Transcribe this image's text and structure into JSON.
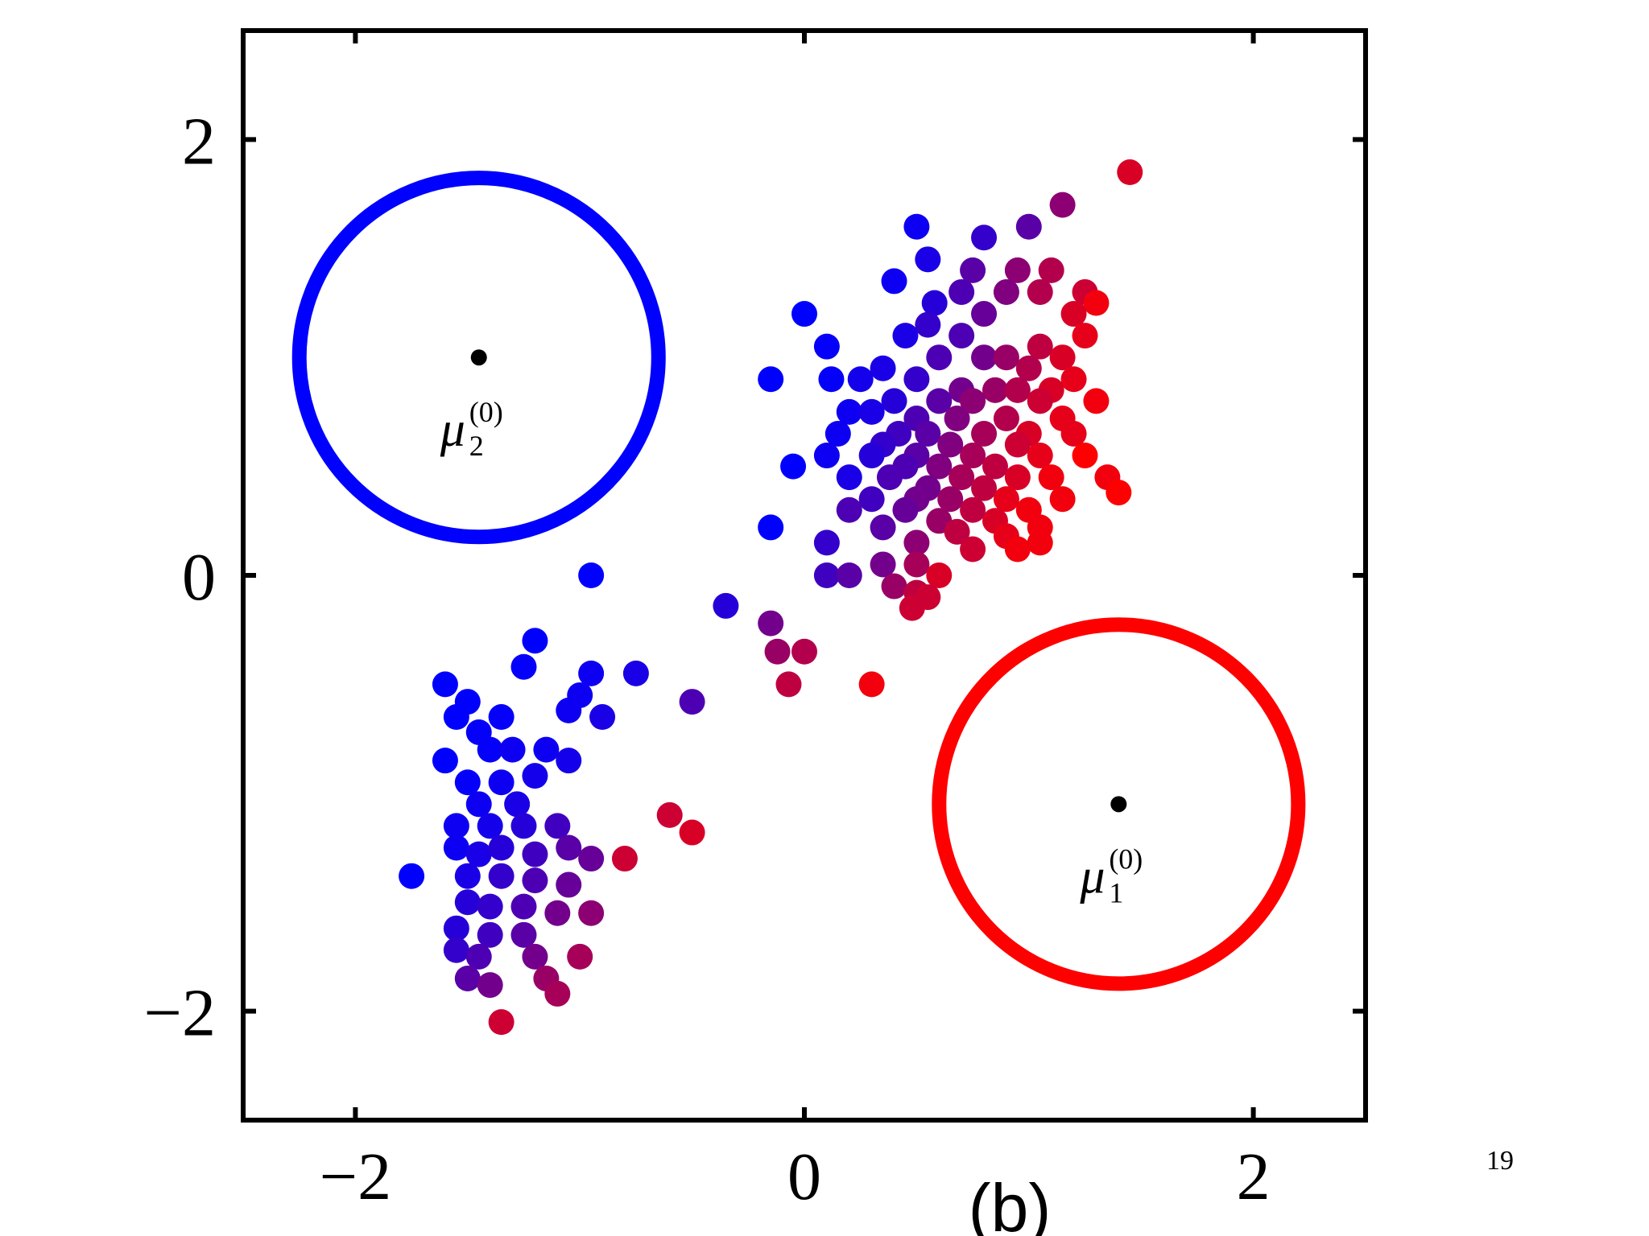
{
  "chart_data": {
    "type": "scatter",
    "title": "",
    "xlabel": "",
    "ylabel": "",
    "subfigure_label": "(b)",
    "xlim": [
      -2.5,
      2.5
    ],
    "ylim": [
      -2.5,
      2.5
    ],
    "x_ticks": [
      -2,
      0,
      2
    ],
    "y_ticks": [
      -2,
      0,
      2
    ],
    "x_tick_labels": [
      "−2",
      "0",
      "2"
    ],
    "y_tick_labels": [
      "2",
      "0",
      "−2"
    ],
    "grid": false,
    "colors": {
      "class_blue": "#0000ff",
      "class_red": "#ff0000",
      "axis": "#000000",
      "mean": "#000000"
    },
    "means": [
      {
        "label": "μ",
        "sub": "2",
        "sup": "(0)",
        "x": -1.45,
        "y": 1.0,
        "circle_radius": 0.8,
        "color": "#0000ff"
      },
      {
        "label": "μ",
        "sub": "1",
        "sup": "(0)",
        "x": 1.4,
        "y": -1.05,
        "circle_radius": 0.8,
        "color": "#ff0000"
      }
    ],
    "points": [
      {
        "x": 1.45,
        "y": 1.85,
        "r": 0.85
      },
      {
        "x": 1.15,
        "y": 1.7,
        "r": 0.55
      },
      {
        "x": 1.0,
        "y": 1.6,
        "r": 0.35
      },
      {
        "x": 0.5,
        "y": 1.6,
        "r": 0.05
      },
      {
        "x": 0.8,
        "y": 1.55,
        "r": 0.2
      },
      {
        "x": 0.55,
        "y": 1.45,
        "r": 0.1
      },
      {
        "x": 0.75,
        "y": 1.4,
        "r": 0.35
      },
      {
        "x": 0.95,
        "y": 1.4,
        "r": 0.55
      },
      {
        "x": 1.1,
        "y": 1.4,
        "r": 0.7
      },
      {
        "x": 0.4,
        "y": 1.35,
        "r": 0.05
      },
      {
        "x": 0.7,
        "y": 1.3,
        "r": 0.3
      },
      {
        "x": 0.9,
        "y": 1.3,
        "r": 0.5
      },
      {
        "x": 1.05,
        "y": 1.3,
        "r": 0.7
      },
      {
        "x": 1.25,
        "y": 1.3,
        "r": 0.8
      },
      {
        "x": 1.3,
        "y": 1.25,
        "r": 0.95
      },
      {
        "x": 0.58,
        "y": 1.25,
        "r": 0.15
      },
      {
        "x": 0.0,
        "y": 1.2,
        "r": 0.0
      },
      {
        "x": 0.8,
        "y": 1.2,
        "r": 0.4
      },
      {
        "x": 1.2,
        "y": 1.2,
        "r": 0.85
      },
      {
        "x": 0.55,
        "y": 1.15,
        "r": 0.2
      },
      {
        "x": 0.45,
        "y": 1.1,
        "r": 0.1
      },
      {
        "x": 0.7,
        "y": 1.1,
        "r": 0.3
      },
      {
        "x": 1.25,
        "y": 1.1,
        "r": 0.9
      },
      {
        "x": 0.1,
        "y": 1.05,
        "r": 0.02
      },
      {
        "x": 0.6,
        "y": 1.0,
        "r": 0.3
      },
      {
        "x": 0.8,
        "y": 1.0,
        "r": 0.45
      },
      {
        "x": 0.9,
        "y": 1.0,
        "r": 0.6
      },
      {
        "x": 1.05,
        "y": 1.05,
        "r": 0.75
      },
      {
        "x": 1.15,
        "y": 1.0,
        "r": 0.85
      },
      {
        "x": 0.35,
        "y": 0.95,
        "r": 0.1
      },
      {
        "x": 0.5,
        "y": 0.9,
        "r": 0.2
      },
      {
        "x": 1.0,
        "y": 0.95,
        "r": 0.7
      },
      {
        "x": 1.2,
        "y": 0.9,
        "r": 0.9
      },
      {
        "x": -0.15,
        "y": 0.9,
        "r": 0.0
      },
      {
        "x": 0.12,
        "y": 0.9,
        "r": 0.02
      },
      {
        "x": 0.25,
        "y": 0.9,
        "r": 0.08
      },
      {
        "x": 0.7,
        "y": 0.85,
        "r": 0.45
      },
      {
        "x": 0.85,
        "y": 0.85,
        "r": 0.6
      },
      {
        "x": 0.95,
        "y": 0.85,
        "r": 0.7
      },
      {
        "x": 1.1,
        "y": 0.85,
        "r": 0.85
      },
      {
        "x": 0.4,
        "y": 0.8,
        "r": 0.15
      },
      {
        "x": 0.6,
        "y": 0.8,
        "r": 0.35
      },
      {
        "x": 0.75,
        "y": 0.8,
        "r": 0.55
      },
      {
        "x": 1.05,
        "y": 0.8,
        "r": 0.8
      },
      {
        "x": 1.3,
        "y": 0.8,
        "r": 0.95
      },
      {
        "x": 0.2,
        "y": 0.75,
        "r": 0.05
      },
      {
        "x": 0.3,
        "y": 0.75,
        "r": 0.1
      },
      {
        "x": 0.5,
        "y": 0.72,
        "r": 0.3
      },
      {
        "x": 0.68,
        "y": 0.72,
        "r": 0.5
      },
      {
        "x": 0.9,
        "y": 0.72,
        "r": 0.7
      },
      {
        "x": 1.15,
        "y": 0.72,
        "r": 0.9
      },
      {
        "x": 0.15,
        "y": 0.65,
        "r": 0.05
      },
      {
        "x": 0.42,
        "y": 0.65,
        "r": 0.25
      },
      {
        "x": 0.55,
        "y": 0.65,
        "r": 0.35
      },
      {
        "x": 0.8,
        "y": 0.65,
        "r": 0.65
      },
      {
        "x": 1.0,
        "y": 0.65,
        "r": 0.85
      },
      {
        "x": 1.2,
        "y": 0.65,
        "r": 0.9
      },
      {
        "x": 0.35,
        "y": 0.6,
        "r": 0.2
      },
      {
        "x": 0.65,
        "y": 0.6,
        "r": 0.5
      },
      {
        "x": 0.95,
        "y": 0.6,
        "r": 0.8
      },
      {
        "x": 0.1,
        "y": 0.55,
        "r": 0.05
      },
      {
        "x": 0.3,
        "y": 0.55,
        "r": 0.15
      },
      {
        "x": 0.5,
        "y": 0.55,
        "r": 0.35
      },
      {
        "x": 0.75,
        "y": 0.55,
        "r": 0.65
      },
      {
        "x": 1.05,
        "y": 0.55,
        "r": 0.9
      },
      {
        "x": 1.25,
        "y": 0.55,
        "r": 1.0
      },
      {
        "x": 0.45,
        "y": 0.5,
        "r": 0.3
      },
      {
        "x": 0.6,
        "y": 0.5,
        "r": 0.5
      },
      {
        "x": 0.85,
        "y": 0.5,
        "r": 0.75
      },
      {
        "x": -0.05,
        "y": 0.5,
        "r": 0.0
      },
      {
        "x": 0.2,
        "y": 0.45,
        "r": 0.1
      },
      {
        "x": 0.38,
        "y": 0.45,
        "r": 0.3
      },
      {
        "x": 0.7,
        "y": 0.45,
        "r": 0.65
      },
      {
        "x": 0.95,
        "y": 0.45,
        "r": 0.85
      },
      {
        "x": 1.1,
        "y": 0.45,
        "r": 0.95
      },
      {
        "x": 0.55,
        "y": 0.4,
        "r": 0.45
      },
      {
        "x": 0.8,
        "y": 0.4,
        "r": 0.75
      },
      {
        "x": 1.35,
        "y": 0.45,
        "r": 0.95
      },
      {
        "x": 0.3,
        "y": 0.35,
        "r": 0.25
      },
      {
        "x": 0.5,
        "y": 0.35,
        "r": 0.45
      },
      {
        "x": 0.65,
        "y": 0.35,
        "r": 0.6
      },
      {
        "x": 0.9,
        "y": 0.35,
        "r": 0.9
      },
      {
        "x": 1.4,
        "y": 0.38,
        "r": 1.0
      },
      {
        "x": 0.45,
        "y": 0.3,
        "r": 0.4
      },
      {
        "x": 0.75,
        "y": 0.3,
        "r": 0.75
      },
      {
        "x": 1.0,
        "y": 0.3,
        "r": 0.95
      },
      {
        "x": 1.15,
        "y": 0.35,
        "r": 0.95
      },
      {
        "x": 0.2,
        "y": 0.3,
        "r": 0.3
      },
      {
        "x": 0.6,
        "y": 0.25,
        "r": 0.6
      },
      {
        "x": 0.85,
        "y": 0.25,
        "r": 0.85
      },
      {
        "x": -0.15,
        "y": 0.22,
        "r": 0.0
      },
      {
        "x": 0.35,
        "y": 0.22,
        "r": 0.35
      },
      {
        "x": 1.05,
        "y": 0.22,
        "r": 0.95
      },
      {
        "x": 0.68,
        "y": 0.2,
        "r": 0.75
      },
      {
        "x": 0.9,
        "y": 0.18,
        "r": 0.9
      },
      {
        "x": 0.1,
        "y": 0.15,
        "r": 0.2
      },
      {
        "x": 0.5,
        "y": 0.15,
        "r": 0.55
      },
      {
        "x": 0.75,
        "y": 0.12,
        "r": 0.8
      },
      {
        "x": 0.95,
        "y": 0.12,
        "r": 0.95
      },
      {
        "x": 1.05,
        "y": 0.15,
        "r": 0.95
      },
      {
        "x": 0.35,
        "y": 0.05,
        "r": 0.45
      },
      {
        "x": 0.1,
        "y": 0.0,
        "r": 0.25
      },
      {
        "x": 0.2,
        "y": 0.0,
        "r": 0.35
      },
      {
        "x": 0.5,
        "y": 0.05,
        "r": 0.65
      },
      {
        "x": 0.6,
        "y": 0.0,
        "r": 0.85
      },
      {
        "x": 0.4,
        "y": -0.05,
        "r": 0.6
      },
      {
        "x": 0.5,
        "y": -0.08,
        "r": 0.75
      },
      {
        "x": 0.55,
        "y": -0.1,
        "r": 0.8
      },
      {
        "x": 0.48,
        "y": -0.15,
        "r": 0.8
      },
      {
        "x": -0.95,
        "y": 0.0,
        "r": 0.0
      },
      {
        "x": -0.35,
        "y": -0.14,
        "r": 0.15
      },
      {
        "x": -0.15,
        "y": -0.22,
        "r": 0.45
      },
      {
        "x": -0.12,
        "y": -0.35,
        "r": 0.6
      },
      {
        "x": 0.0,
        "y": -0.35,
        "r": 0.7
      },
      {
        "x": -0.07,
        "y": -0.5,
        "r": 0.75
      },
      {
        "x": 0.3,
        "y": -0.5,
        "r": 0.95
      },
      {
        "x": -0.5,
        "y": -0.58,
        "r": 0.3
      },
      {
        "x": -1.2,
        "y": -0.3,
        "r": 0.0
      },
      {
        "x": -1.25,
        "y": -0.42,
        "r": 0.02
      },
      {
        "x": -0.95,
        "y": -0.45,
        "r": 0.05
      },
      {
        "x": -0.75,
        "y": -0.45,
        "r": 0.1
      },
      {
        "x": -1.6,
        "y": -0.5,
        "r": 0.0
      },
      {
        "x": -1.5,
        "y": -0.58,
        "r": 0.0
      },
      {
        "x": -1.0,
        "y": -0.55,
        "r": 0.05
      },
      {
        "x": -1.05,
        "y": -0.62,
        "r": 0.05
      },
      {
        "x": -0.9,
        "y": -0.65,
        "r": 0.1
      },
      {
        "x": -1.55,
        "y": -0.65,
        "r": 0.0
      },
      {
        "x": -1.35,
        "y": -0.65,
        "r": 0.02
      },
      {
        "x": -1.45,
        "y": -0.72,
        "r": 0.02
      },
      {
        "x": -1.6,
        "y": -0.85,
        "r": 0.0
      },
      {
        "x": -1.4,
        "y": -0.8,
        "r": 0.02
      },
      {
        "x": -1.3,
        "y": -0.8,
        "r": 0.05
      },
      {
        "x": -1.15,
        "y": -0.8,
        "r": 0.05
      },
      {
        "x": -1.05,
        "y": -0.85,
        "r": 0.08
      },
      {
        "x": -1.5,
        "y": -0.95,
        "r": 0.02
      },
      {
        "x": -1.35,
        "y": -0.95,
        "r": 0.05
      },
      {
        "x": -1.2,
        "y": -0.92,
        "r": 0.08
      },
      {
        "x": -1.45,
        "y": -1.05,
        "r": 0.05
      },
      {
        "x": -1.28,
        "y": -1.05,
        "r": 0.1
      },
      {
        "x": -1.55,
        "y": -1.15,
        "r": 0.05
      },
      {
        "x": -1.4,
        "y": -1.15,
        "r": 0.08
      },
      {
        "x": -1.25,
        "y": -1.15,
        "r": 0.15
      },
      {
        "x": -1.1,
        "y": -1.15,
        "r": 0.25
      },
      {
        "x": -1.55,
        "y": -1.25,
        "r": 0.05
      },
      {
        "x": -1.45,
        "y": -1.28,
        "r": 0.1
      },
      {
        "x": -1.35,
        "y": -1.25,
        "r": 0.15
      },
      {
        "x": -1.2,
        "y": -1.28,
        "r": 0.25
      },
      {
        "x": -1.05,
        "y": -1.25,
        "r": 0.35
      },
      {
        "x": -0.95,
        "y": -1.3,
        "r": 0.4
      },
      {
        "x": -1.75,
        "y": -1.38,
        "r": 0.0
      },
      {
        "x": -1.5,
        "y": -1.38,
        "r": 0.1
      },
      {
        "x": -1.35,
        "y": -1.38,
        "r": 0.2
      },
      {
        "x": -1.2,
        "y": -1.4,
        "r": 0.3
      },
      {
        "x": -1.05,
        "y": -1.42,
        "r": 0.4
      },
      {
        "x": -1.5,
        "y": -1.5,
        "r": 0.15
      },
      {
        "x": -1.4,
        "y": -1.52,
        "r": 0.2
      },
      {
        "x": -1.25,
        "y": -1.52,
        "r": 0.3
      },
      {
        "x": -1.1,
        "y": -1.55,
        "r": 0.45
      },
      {
        "x": -0.95,
        "y": -1.55,
        "r": 0.55
      },
      {
        "x": -1.55,
        "y": -1.62,
        "r": 0.15
      },
      {
        "x": -1.4,
        "y": -1.65,
        "r": 0.25
      },
      {
        "x": -1.25,
        "y": -1.65,
        "r": 0.35
      },
      {
        "x": -1.55,
        "y": -1.72,
        "r": 0.2
      },
      {
        "x": -1.45,
        "y": -1.75,
        "r": 0.3
      },
      {
        "x": -1.2,
        "y": -1.75,
        "r": 0.45
      },
      {
        "x": -1.0,
        "y": -1.75,
        "r": 0.65
      },
      {
        "x": -1.5,
        "y": -1.85,
        "r": 0.35
      },
      {
        "x": -1.4,
        "y": -1.88,
        "r": 0.45
      },
      {
        "x": -1.15,
        "y": -1.85,
        "r": 0.6
      },
      {
        "x": -1.1,
        "y": -1.92,
        "r": 0.65
      },
      {
        "x": -1.35,
        "y": -2.05,
        "r": 0.8
      },
      {
        "x": -0.8,
        "y": -1.3,
        "r": 0.8
      },
      {
        "x": -0.6,
        "y": -1.1,
        "r": 0.8
      },
      {
        "x": -0.5,
        "y": -1.18,
        "r": 0.85
      }
    ]
  },
  "page_number": "19"
}
